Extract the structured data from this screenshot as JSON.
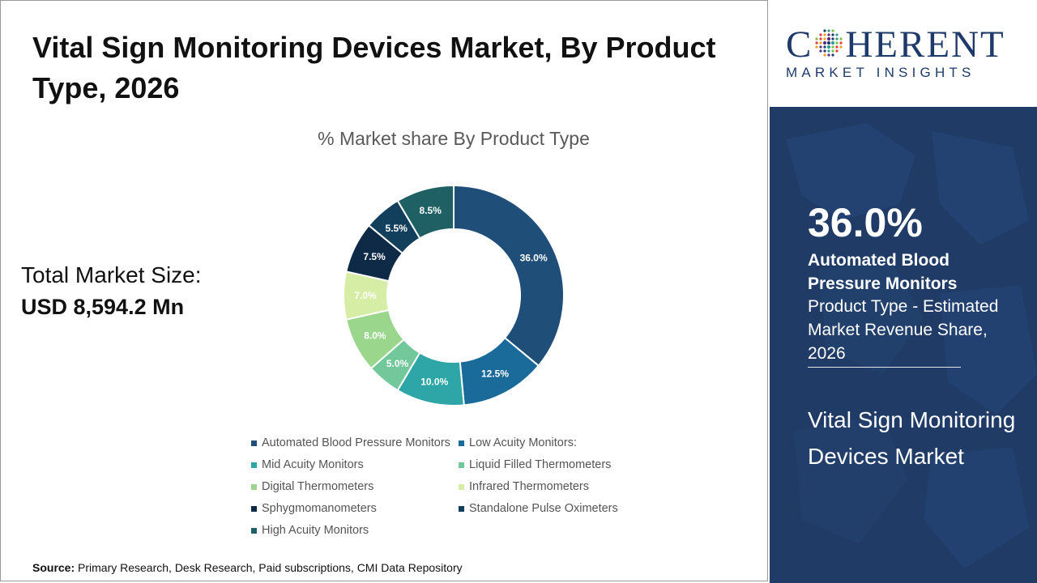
{
  "title": "Vital Sign Monitoring Devices Market, By Product Type, 2026",
  "total_market": {
    "label": "Total Market Size:",
    "value": "USD 8,594.2 Mn"
  },
  "source": {
    "label": "Source:",
    "text": " Primary Research, Desk Research, Paid subscriptions, CMI Data Repository"
  },
  "logo": {
    "word_left": "C",
    "word_right": "HERENT",
    "subtitle": "MARKET INSIGHTS"
  },
  "highlight": {
    "value": "36.0%",
    "name": "Automated Blood Pressure Monitors",
    "description": "Product Type - Estimated Market Revenue Share, 2026"
  },
  "market_name": "Vital Sign Monitoring Devices Market",
  "colors": {
    "panel": "#1f3b66",
    "brand": "#1e3a6a"
  },
  "chart_data": {
    "type": "pie",
    "donut": true,
    "title": "% Market share By Product Type",
    "legend_position": "bottom",
    "categories": [
      "Automated Blood Pressure Monitors",
      "Low Acuity Monitors:",
      "Mid Acuity Monitors",
      "Liquid Filled Thermometers",
      "Digital Thermometers",
      "Infrared Thermometers",
      "Sphygmomanometers",
      "Standalone Pulse Oximeters",
      "High Acuity Monitors"
    ],
    "values": [
      36.0,
      12.5,
      10.0,
      5.0,
      8.0,
      7.0,
      7.5,
      5.5,
      8.5
    ],
    "labels": [
      "36.0%",
      "12.5%",
      "10.0%",
      "5.0%",
      "8.0%",
      "7.0%",
      "7.5%",
      "5.5%",
      "8.5%"
    ],
    "colors": [
      "#1f4e79",
      "#1a6b9a",
      "#2ea5a7",
      "#72c89a",
      "#9ad78c",
      "#d6eda6",
      "#0e2a47",
      "#123f5c",
      "#1e6064"
    ],
    "label_colors": [
      "#ffffff",
      "#ffffff",
      "#ffffff",
      "#ffffff",
      "#ffffff",
      "#ffffff",
      "#ffffff",
      "#ffffff",
      "#ffffff"
    ]
  }
}
